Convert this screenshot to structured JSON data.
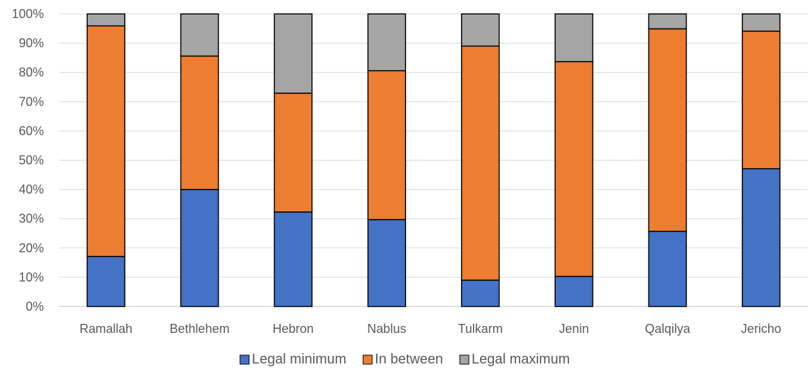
{
  "chart_data": {
    "type": "bar",
    "stacked": true,
    "categories": [
      "Ramallah",
      "Bethlehem",
      "Hebron",
      "Nablus",
      "Tulkarm",
      "Jenin",
      "Qalqilya",
      "Jericho"
    ],
    "series": [
      {
        "name": "Legal minimum",
        "color": "#4472C4",
        "values": [
          17.1,
          40.0,
          32.3,
          29.7,
          9.0,
          10.3,
          25.7,
          47.1
        ]
      },
      {
        "name": "In between",
        "color": "#ED7D31",
        "values": [
          78.8,
          45.6,
          40.6,
          50.9,
          80.0,
          73.4,
          69.2,
          47.0
        ]
      },
      {
        "name": "Legal maximum",
        "color": "#A5A5A5",
        "values": [
          4.1,
          14.4,
          27.1,
          19.4,
          11.0,
          16.3,
          5.1,
          5.9
        ]
      }
    ],
    "y_ticks": [
      "0%",
      "10%",
      "20%",
      "30%",
      "40%",
      "50%",
      "60%",
      "70%",
      "80%",
      "90%",
      "100%"
    ],
    "ylim": [
      0,
      100
    ],
    "grid": true,
    "legend_position": "bottom",
    "title": "",
    "xlabel": "",
    "ylabel": ""
  }
}
